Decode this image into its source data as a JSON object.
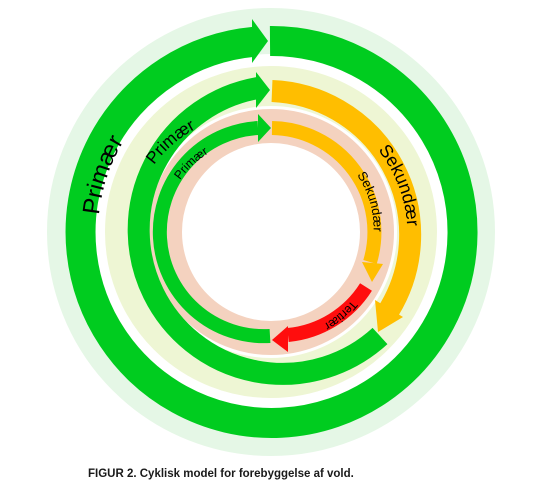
{
  "caption": "FIGUR 2. Cyklisk model for forebyggelse af vold.",
  "colors": {
    "primary": "#00cc1f",
    "secondary": "#ffbe00",
    "tertiary": "#ff0d0d",
    "outer_band": "#e5f7e6",
    "middle_band": "#eef6d4",
    "inner_band": "#f4d2bf"
  },
  "rings": [
    {
      "name": "outer",
      "primary_label": "Primær",
      "secondary_label": ""
    },
    {
      "name": "middle",
      "primary_label": "Primær",
      "secondary_label": "Sekundær"
    },
    {
      "name": "inner",
      "primary_label": "Primær",
      "secondary_label": "Sekundær",
      "tertiary_label": "Tertiær"
    }
  ]
}
